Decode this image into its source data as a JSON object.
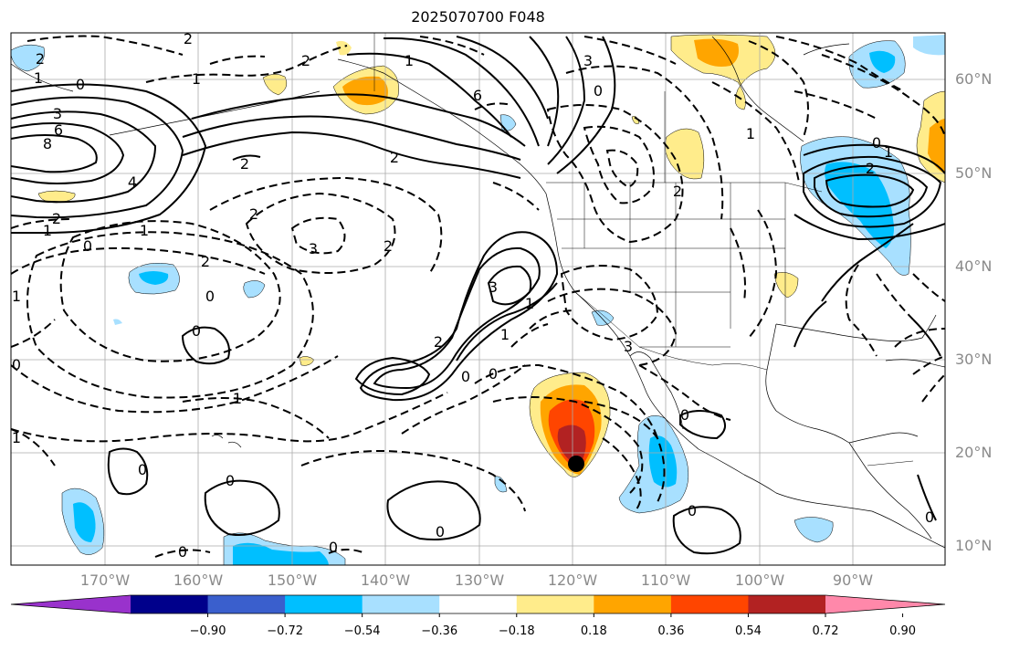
{
  "title": "2025070700 F048",
  "longitude_labels": [
    "170°W",
    "160°W",
    "150°W",
    "140°W",
    "130°W",
    "120°W",
    "110°W",
    "100°W",
    "90°W"
  ],
  "latitude_labels": [
    "60°N",
    "50°N",
    "40°N",
    "30°N",
    "20°N",
    "10°N"
  ],
  "colorbar": {
    "colors": [
      "#9932cc",
      "#00008b",
      "#3a5fcd",
      "#00bfff",
      "#a8e0ff",
      "#ffffff",
      "#ffec8b",
      "#ffa500",
      "#ff4500",
      "#b22222",
      "#ff88aa"
    ],
    "tick_labels": [
      "−0.90",
      "−0.72",
      "−0.54",
      "−0.36",
      "−0.18",
      "0.18",
      "0.36",
      "0.54",
      "0.72",
      "0.90"
    ]
  },
  "contour_labels": [
    "2",
    "1",
    "0",
    "2",
    "1",
    "3",
    "6",
    "8",
    "4",
    "2",
    "1",
    "0",
    "2",
    "1",
    "6",
    "3",
    "2",
    "2",
    "2",
    "0",
    "1",
    "2",
    "1",
    "3",
    "2",
    "0",
    "3",
    "0",
    "0",
    "2",
    "1",
    "1",
    "1",
    "0",
    "1",
    "0",
    "0",
    "0",
    "0",
    "0",
    "0",
    "0",
    "0",
    "2",
    "1",
    "3",
    "0",
    "1",
    "2",
    "0"
  ],
  "storm_marker": "tropical-cyclone-center"
}
